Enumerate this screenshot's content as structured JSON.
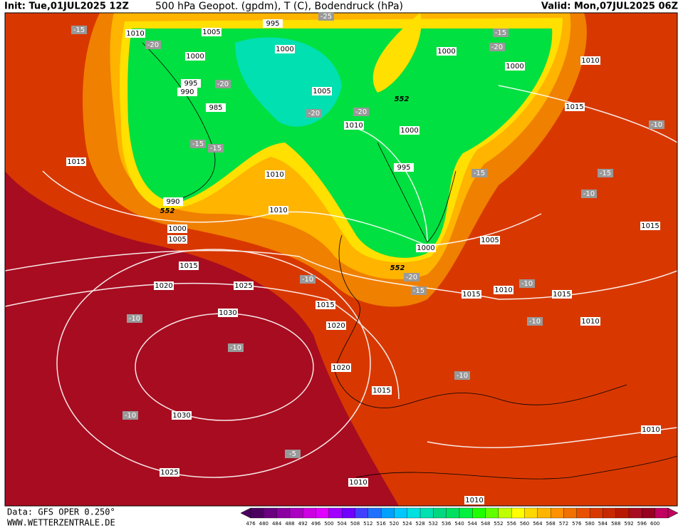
{
  "header": {
    "init": "Init: Tue,01JUL2025 12Z",
    "title": "500 hPa Geopot. (gpdm), T (C), Bodendruck (hPa)",
    "valid": "Valid: Mon,07JUL2025 06Z"
  },
  "footer": {
    "source": "Data: GFS OPER 0.250°",
    "url": "WWW.WETTERZENTRALE.DE"
  },
  "colorbar": {
    "labels": [
      "476",
      "480",
      "484",
      "488",
      "492",
      "496",
      "500",
      "504",
      "508",
      "512",
      "516",
      "520",
      "524",
      "528",
      "532",
      "536",
      "540",
      "544",
      "548",
      "552",
      "556",
      "560",
      "564",
      "568",
      "572",
      "576",
      "580",
      "584",
      "588",
      "592",
      "596",
      "600"
    ],
    "colors": [
      "#4b0060",
      "#6a0080",
      "#8a00a0",
      "#aa00c0",
      "#cc00e0",
      "#e000ff",
      "#a000ff",
      "#7000ff",
      "#4040ff",
      "#2070ff",
      "#00a0ff",
      "#00c8ff",
      "#00e0e0",
      "#00e0b0",
      "#00d880",
      "#00e060",
      "#00f040",
      "#20ff00",
      "#60ff00",
      "#c0ff00",
      "#ffff00",
      "#ffd800",
      "#ffb400",
      "#ff9000",
      "#f07000",
      "#e85000",
      "#d83800",
      "#c82800",
      "#b81800",
      "#a80c20",
      "#980020",
      "#c00060"
    ]
  },
  "isobar_labels": [
    "1010",
    "1005",
    "995",
    "1000",
    "1000",
    "995",
    "990",
    "985",
    "1005",
    "1010",
    "1000",
    "995",
    "1000",
    "1000",
    "1010",
    "1015",
    "1015",
    "1010",
    "990",
    "1010",
    "1000",
    "1005",
    "1000",
    "1005",
    "1015",
    "1020",
    "1025",
    "1015",
    "1030",
    "1020",
    "1015",
    "1010",
    "1015",
    "1010",
    "1020",
    "1015",
    "1030",
    "1010",
    "1025",
    "1010",
    "1010",
    "1015"
  ],
  "temperature_labels": [
    "-15",
    "-20",
    "-25",
    "-15",
    "-20",
    "-20",
    "-20",
    "-20",
    "-15",
    "-15",
    "-15",
    "-15",
    "-10",
    "-10",
    "-10",
    "-20",
    "-15",
    "-10",
    "-10",
    "-10",
    "-10",
    "-10",
    "-5",
    "-10"
  ],
  "contour_labels": [
    "552",
    "552",
    "552"
  ]
}
